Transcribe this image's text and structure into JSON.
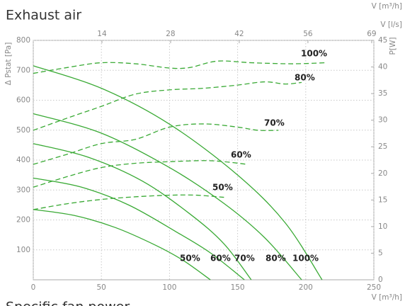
{
  "chart_data": {
    "type": "line",
    "title": "Exhaust air",
    "subtitle": "Specific fan power",
    "xlabel": "V [m³/h]",
    "xlabel_top": "V [m³/h]",
    "x2label": "V [l/s]",
    "ylabel": "Δ Pstat [Pa]",
    "y2label": "P[W]",
    "xlim": [
      0,
      250
    ],
    "xticks": [
      0,
      50,
      100,
      150,
      200,
      250
    ],
    "x2lim": [
      0,
      69.44
    ],
    "x2ticks": [
      14,
      28,
      42,
      56,
      69
    ],
    "ylim": [
      0,
      800
    ],
    "yticks": [
      100,
      200,
      300,
      400,
      500,
      600,
      700,
      800
    ],
    "y2lim": [
      0,
      45
    ],
    "y2ticks": [
      0,
      5,
      10,
      15,
      20,
      25,
      30,
      35,
      40,
      45
    ],
    "grid": true,
    "color": "#3aaa35",
    "pressure_curves": [
      {
        "name": "50%",
        "x": [
          0,
          30,
          60,
          90,
          110,
          130
        ],
        "values": [
          235,
          215,
          175,
          115,
          65,
          0
        ]
      },
      {
        "name": "60%",
        "x": [
          0,
          35,
          70,
          105,
          130,
          155
        ],
        "values": [
          340,
          310,
          250,
          160,
          90,
          0
        ]
      },
      {
        "name": "70%",
        "x": [
          0,
          40,
          80,
          115,
          140,
          160
        ],
        "values": [
          455,
          410,
          330,
          220,
          120,
          0
        ]
      },
      {
        "name": "80%",
        "x": [
          0,
          50,
          100,
          140,
          170,
          197
        ],
        "values": [
          555,
          490,
          375,
          255,
          140,
          0
        ]
      },
      {
        "name": "100%",
        "x": [
          0,
          50,
          100,
          150,
          185,
          212
        ],
        "values": [
          715,
          640,
          520,
          350,
          190,
          0
        ]
      }
    ],
    "power_curves": [
      {
        "name": "50%",
        "axis": "y2",
        "x": [
          0,
          25,
          50,
          75,
          100,
          120,
          140
        ],
        "values": [
          13.2,
          14.3,
          15.1,
          15.6,
          15.9,
          15.9,
          15.5
        ]
      },
      {
        "name": "60%",
        "axis": "y2",
        "x": [
          0,
          25,
          50,
          75,
          100,
          125,
          140,
          157
        ],
        "values": [
          17.4,
          19.4,
          21.1,
          21.9,
          22.2,
          22.4,
          22.2,
          21.7
        ]
      },
      {
        "name": "70%",
        "axis": "y2",
        "x": [
          0,
          25,
          50,
          75,
          100,
          125,
          150,
          165,
          180
        ],
        "values": [
          21.7,
          23.6,
          25.6,
          26.4,
          28.7,
          29.3,
          28.7,
          28.1,
          28.1
        ]
      },
      {
        "name": "80%",
        "axis": "y2",
        "x": [
          0,
          25,
          50,
          75,
          100,
          125,
          150,
          170,
          185,
          197
        ],
        "values": [
          28.1,
          30.4,
          32.6,
          34.9,
          35.7,
          36.0,
          36.6,
          37.2,
          36.8,
          37.1
        ]
      },
      {
        "name": "100%",
        "axis": "y2",
        "x": [
          0,
          25,
          50,
          75,
          100,
          115,
          135,
          160,
          190,
          215
        ],
        "values": [
          38.8,
          39.9,
          40.8,
          40.6,
          39.8,
          39.9,
          41.1,
          40.8,
          40.6,
          40.8
        ]
      }
    ]
  }
}
